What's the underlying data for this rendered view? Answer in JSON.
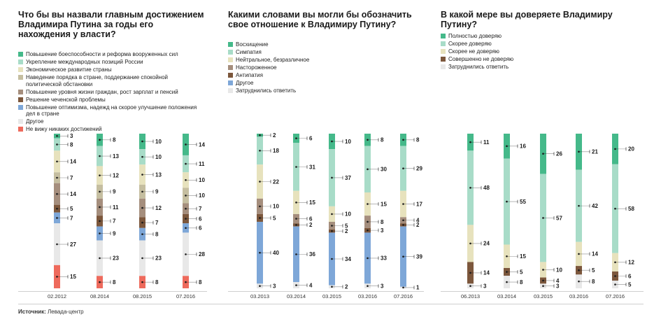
{
  "source": {
    "label": "Источник:",
    "value": "Левада-центр"
  },
  "chart_data": [
    {
      "type": "bar",
      "stacked": true,
      "title": "Что бы вы назвали главным достижением Владимира Путина за годы его нахождения у власти?",
      "categories": [
        "02.2012",
        "08.2014",
        "08.2015",
        "07.2016"
      ],
      "series": [
        {
          "name": "Повышение боеспособности и реформа вооруженных сил",
          "color": "#45b98a",
          "values": [
            3,
            8,
            10,
            14
          ]
        },
        {
          "name": "Укрепление международных позиций России",
          "color": "#a8dcc8",
          "values": [
            8,
            13,
            10,
            11
          ]
        },
        {
          "name": "Экономическое развитие страны",
          "color": "#e7e2bd",
          "values": [
            14,
            12,
            13,
            10
          ]
        },
        {
          "name": "Наведение порядка в стране, поддержание спокойной политической обстановки",
          "color": "#c5bea0",
          "values": [
            7,
            9,
            9,
            10
          ]
        },
        {
          "name": "Повышение уровня жизни граждан, рост зарплат и пенсий",
          "color": "#a58e7d",
          "values": [
            14,
            11,
            12,
            7
          ]
        },
        {
          "name": "Решение чеченской проблемы",
          "color": "#7c573c",
          "values": [
            5,
            7,
            7,
            6
          ]
        },
        {
          "name": "Повышение оптимизма, надежд на скорое улучшение положения дел в стране",
          "color": "#7ea7d8",
          "values": [
            7,
            9,
            8,
            6
          ]
        },
        {
          "name": "Другое",
          "color": "#e8e8e8",
          "values": [
            27,
            23,
            23,
            28
          ]
        },
        {
          "name": "Не вижу никаких достижений",
          "color": "#ee6a5c",
          "values": [
            15,
            8,
            8,
            8
          ]
        }
      ]
    },
    {
      "type": "bar",
      "stacked": true,
      "title": "Какими словами вы могли бы обозначить свое отношение к Владимиру Путину?",
      "categories": [
        "03.2013",
        "03.2014",
        "03.2015",
        "03.2016",
        "07.2016"
      ],
      "series": [
        {
          "name": "Восхищение",
          "color": "#45b98a",
          "values": [
            2,
            6,
            10,
            8,
            8
          ]
        },
        {
          "name": "Симпатия",
          "color": "#a8dcc8",
          "values": [
            18,
            31,
            37,
            30,
            29
          ]
        },
        {
          "name": "Нейтральное, безразличное",
          "color": "#e7e2bd",
          "values": [
            22,
            15,
            10,
            15,
            17
          ]
        },
        {
          "name": "Настороженное",
          "color": "#a58e7d",
          "values": [
            10,
            6,
            5,
            8,
            4
          ]
        },
        {
          "name": "Антипатия",
          "color": "#7c573c",
          "values": [
            5,
            2,
            2,
            3,
            2
          ]
        },
        {
          "name": "Другое",
          "color": "#7ea7d8",
          "values": [
            40,
            36,
            34,
            33,
            39
          ]
        },
        {
          "name": "Затруднились ответить",
          "color": "#e8e8e8",
          "values": [
            3,
            4,
            2,
            3,
            1
          ]
        }
      ]
    },
    {
      "type": "bar",
      "stacked": true,
      "title": "В какой мере вы доверяете Владимиру Путину?",
      "categories": [
        "06.2013",
        "03.2014",
        "03.2015",
        "03.2016",
        "07.2016"
      ],
      "series": [
        {
          "name": "Полностью доверяю",
          "color": "#45b98a",
          "values": [
            11,
            16,
            26,
            21,
            20
          ]
        },
        {
          "name": "Скорее доверяю",
          "color": "#a8dcc8",
          "values": [
            48,
            55,
            57,
            42,
            58
          ]
        },
        {
          "name": "Скорее не доверяю",
          "color": "#e7e2bd",
          "values": [
            24,
            15,
            10,
            14,
            12
          ]
        },
        {
          "name": "Совершенно не доверяю",
          "color": "#7c573c",
          "values": [
            14,
            5,
            4,
            5,
            6
          ]
        },
        {
          "name": "Затруднились ответить",
          "color": "#e8e8e8",
          "values": [
            3,
            8,
            3,
            8,
            5
          ]
        }
      ]
    }
  ]
}
